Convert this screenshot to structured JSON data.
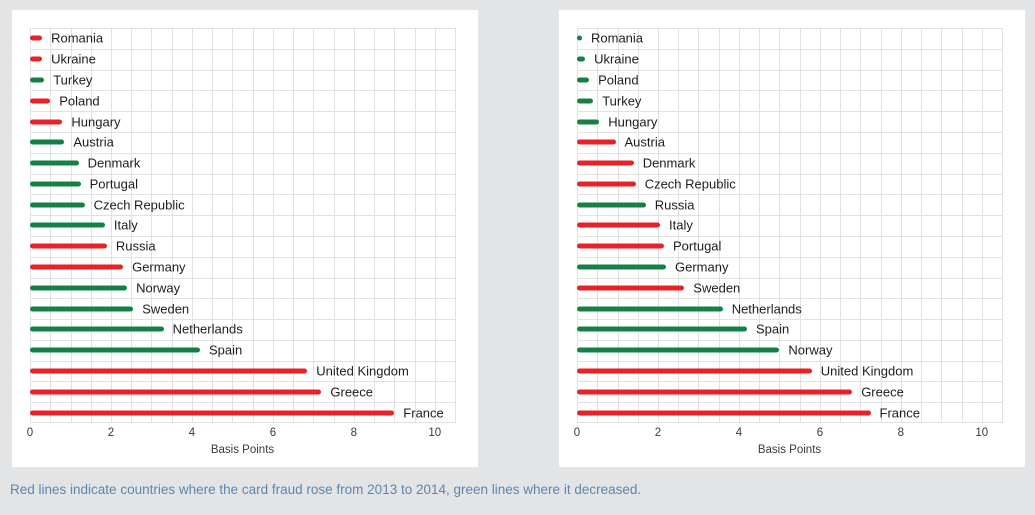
{
  "caption": {
    "text": "Red lines indicate countries where the card fraud rose from 2013 to 2014, green lines where it decreased."
  },
  "colors": {
    "rose": "#e82127",
    "decreased": "#148045",
    "gridline": "#e1e1e1",
    "panel_background": "#ffffff",
    "page_background": "#e3e4e6",
    "caption_text": "#5d86ad"
  },
  "chart_data": [
    {
      "type": "bar",
      "orientation": "horizontal",
      "title": "",
      "xlabel": "Basis Points",
      "xlim": [
        0,
        10.5
      ],
      "xticks": [
        0,
        2,
        4,
        6,
        8,
        10
      ],
      "minor_grid_step": 0.5,
      "grid": true,
      "rows": [
        {
          "country": "Romania",
          "value": 0.3,
          "trend": "rose"
        },
        {
          "country": "Ukraine",
          "value": 0.3,
          "trend": "rose"
        },
        {
          "country": "Turkey",
          "value": 0.35,
          "trend": "decreased"
        },
        {
          "country": "Poland",
          "value": 0.5,
          "trend": "rose"
        },
        {
          "country": "Hungary",
          "value": 0.8,
          "trend": "rose"
        },
        {
          "country": "Austria",
          "value": 0.85,
          "trend": "decreased"
        },
        {
          "country": "Denmark",
          "value": 1.2,
          "trend": "decreased"
        },
        {
          "country": "Portugal",
          "value": 1.25,
          "trend": "decreased"
        },
        {
          "country": "Czech Republic",
          "value": 1.35,
          "trend": "decreased"
        },
        {
          "country": "Italy",
          "value": 1.85,
          "trend": "decreased"
        },
        {
          "country": "Russia",
          "value": 1.9,
          "trend": "rose"
        },
        {
          "country": "Germany",
          "value": 2.3,
          "trend": "rose"
        },
        {
          "country": "Norway",
          "value": 2.4,
          "trend": "decreased"
        },
        {
          "country": "Sweden",
          "value": 2.55,
          "trend": "decreased"
        },
        {
          "country": "Netherlands",
          "value": 3.3,
          "trend": "decreased"
        },
        {
          "country": "Spain",
          "value": 4.2,
          "trend": "decreased"
        },
        {
          "country": "United Kingdom",
          "value": 6.85,
          "trend": "rose"
        },
        {
          "country": "Greece",
          "value": 7.2,
          "trend": "rose"
        },
        {
          "country": "France",
          "value": 9.0,
          "trend": "rose"
        }
      ]
    },
    {
      "type": "bar",
      "orientation": "horizontal",
      "title": "",
      "xlabel": "Basis Points",
      "xlim": [
        0,
        10.5
      ],
      "xticks": [
        0,
        2,
        4,
        6,
        8,
        10
      ],
      "minor_grid_step": 0.5,
      "grid": true,
      "rows": [
        {
          "country": "Romania",
          "value": 0.05,
          "trend": "decreased"
        },
        {
          "country": "Ukraine",
          "value": 0.2,
          "trend": "decreased"
        },
        {
          "country": "Poland",
          "value": 0.3,
          "trend": "decreased"
        },
        {
          "country": "Turkey",
          "value": 0.4,
          "trend": "decreased"
        },
        {
          "country": "Hungary",
          "value": 0.55,
          "trend": "decreased"
        },
        {
          "country": "Austria",
          "value": 0.95,
          "trend": "rose"
        },
        {
          "country": "Denmark",
          "value": 1.4,
          "trend": "rose"
        },
        {
          "country": "Czech Republic",
          "value": 1.45,
          "trend": "rose"
        },
        {
          "country": "Russia",
          "value": 1.7,
          "trend": "decreased"
        },
        {
          "country": "Italy",
          "value": 2.05,
          "trend": "rose"
        },
        {
          "country": "Portugal",
          "value": 2.15,
          "trend": "rose"
        },
        {
          "country": "Germany",
          "value": 2.2,
          "trend": "decreased"
        },
        {
          "country": "Sweden",
          "value": 2.65,
          "trend": "rose"
        },
        {
          "country": "Netherlands",
          "value": 3.6,
          "trend": "decreased"
        },
        {
          "country": "Spain",
          "value": 4.2,
          "trend": "decreased"
        },
        {
          "country": "Norway",
          "value": 5.0,
          "trend": "decreased"
        },
        {
          "country": "United Kingdom",
          "value": 5.8,
          "trend": "rose"
        },
        {
          "country": "Greece",
          "value": 6.8,
          "trend": "rose"
        },
        {
          "country": "France",
          "value": 7.25,
          "trend": "rose"
        }
      ]
    }
  ]
}
